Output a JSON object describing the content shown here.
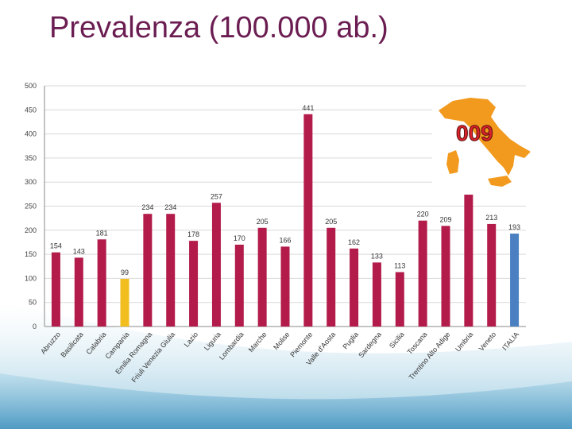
{
  "slide": {
    "title": "Prevalenza (100.000 ab.)"
  },
  "logo": {
    "text": "009"
  },
  "colors": {
    "title": "#6b1d52",
    "bar_region": "#b31b4a",
    "bar_campania": "#f2be1f",
    "bar_italia": "#4a7fc1",
    "logo_map": "#f29a1e",
    "logo_text": "#d8232a"
  },
  "chart_data": {
    "type": "bar",
    "title": "",
    "xlabel": "",
    "ylabel": "",
    "ylim": [
      0,
      500
    ],
    "yticks": [
      0,
      50,
      100,
      150,
      200,
      250,
      300,
      350,
      400,
      450,
      500
    ],
    "grid": true,
    "categories": [
      "Abruzzo",
      "Basilicata",
      "Calabria",
      "Campania",
      "Emilia Romagna",
      "Friuli Venezia Giulia",
      "Lazio",
      "Liguria",
      "Lombardia",
      "Marche",
      "Molise",
      "Piemonte",
      "Valle d'Aosta",
      "Puglia",
      "Sardegna",
      "Sicilia",
      "Toscana",
      "Trentino Alto Adige",
      "Umbria",
      "Veneto",
      "ITALIA"
    ],
    "values": [
      154,
      143,
      181,
      99,
      234,
      234,
      178,
      257,
      170,
      205,
      166,
      441,
      205,
      162,
      133,
      113,
      220,
      209,
      284,
      213,
      193
    ],
    "bar_colors": [
      "#b31b4a",
      "#b31b4a",
      "#b31b4a",
      "#f2be1f",
      "#b31b4a",
      "#b31b4a",
      "#b31b4a",
      "#b31b4a",
      "#b31b4a",
      "#b31b4a",
      "#b31b4a",
      "#b31b4a",
      "#b31b4a",
      "#b31b4a",
      "#b31b4a",
      "#b31b4a",
      "#b31b4a",
      "#b31b4a",
      "#b31b4a",
      "#b31b4a",
      "#4a7fc1"
    ]
  }
}
